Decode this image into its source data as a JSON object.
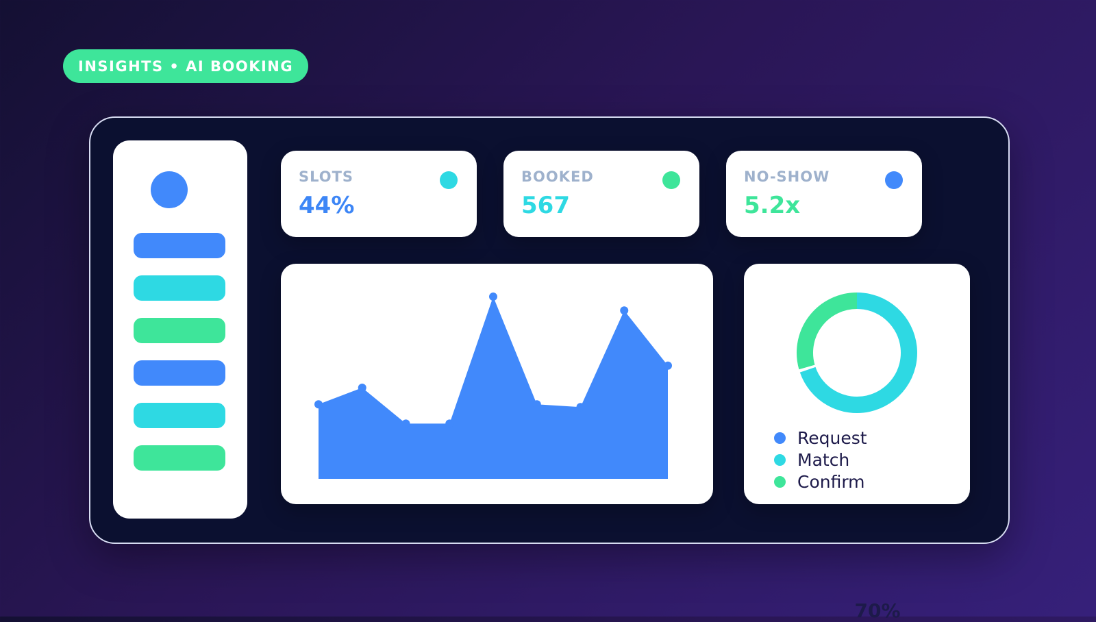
{
  "tag": "INSIGHTS • AI BOOKING",
  "stats": [
    {
      "label": "SLOTS",
      "value": "44%",
      "value_color": "#3d86f6",
      "dot_color": "#2ed9e3"
    },
    {
      "label": "BOOKED",
      "value": "567",
      "value_color": "#2ed9e3",
      "dot_color": "#3ee59a"
    },
    {
      "label": "NO-SHOW",
      "value": "5.2x",
      "value_color": "#3ee59a",
      "dot_color": "#4189fb"
    }
  ],
  "sidebar": {
    "avatar_color": "#4189fb",
    "items": [
      {
        "color": "#4189fb"
      },
      {
        "color": "#2ed9e3"
      },
      {
        "color": "#3ee59a"
      },
      {
        "color": "#4189fb"
      },
      {
        "color": "#2ed9e3"
      },
      {
        "color": "#3ee59a"
      }
    ]
  },
  "chart_data": {
    "type": "area",
    "values": [
      27,
      33,
      20,
      20,
      66,
      27,
      26,
      61,
      41
    ],
    "ylim": [
      0,
      68
    ],
    "grid": false,
    "color": "#4189fb"
  },
  "donut": {
    "label": "70%",
    "segments": [
      {
        "name": "Request",
        "color": "#4189fb"
      },
      {
        "name": "Match",
        "color": "#2ed9e3"
      },
      {
        "name": "Confirm",
        "color": "#3ee59a"
      }
    ]
  }
}
